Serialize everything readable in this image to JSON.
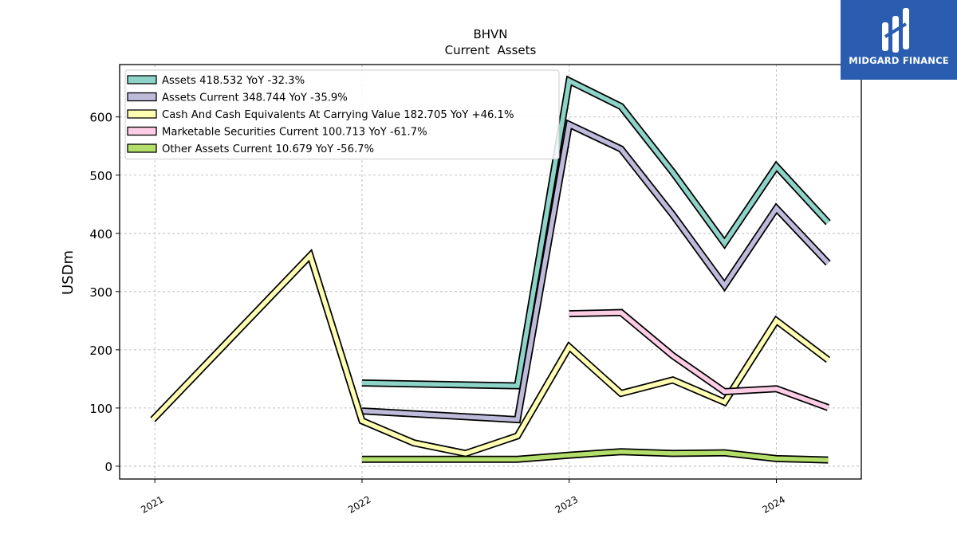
{
  "chart_data": {
    "type": "line",
    "title": "BHVN",
    "subtitle": "Current  Assets",
    "ylabel": "USDm",
    "xlabel": "",
    "ylim": [
      -22,
      690
    ],
    "xlim": [
      2020.83,
      2024.41
    ],
    "grid": true,
    "legend_position": "top-left",
    "yticks": [
      0,
      100,
      200,
      300,
      400,
      500,
      600
    ],
    "xticks": [
      {
        "value": 2021,
        "label": "2021"
      },
      {
        "value": 2022,
        "label": "2022"
      },
      {
        "value": 2023,
        "label": "2023"
      },
      {
        "value": 2024,
        "label": "2024"
      }
    ],
    "series": [
      {
        "name": "Assets  418.532 YoY -32.3%",
        "color": "#8dd3c7",
        "points": [
          [
            2022.0,
            143
          ],
          [
            2022.75,
            138
          ],
          [
            2023.0,
            662
          ],
          [
            2023.25,
            618
          ],
          [
            2023.5,
            505
          ],
          [
            2023.75,
            383
          ],
          [
            2024.0,
            515
          ],
          [
            2024.25,
            418.532
          ]
        ]
      },
      {
        "name": "Assets Current  348.744 YoY -35.9%",
        "color": "#bebada",
        "points": [
          [
            2022.0,
            95
          ],
          [
            2022.75,
            80
          ],
          [
            2023.0,
            587
          ],
          [
            2023.25,
            545
          ],
          [
            2023.5,
            432
          ],
          [
            2023.75,
            310
          ],
          [
            2024.0,
            443
          ],
          [
            2024.25,
            348.744
          ]
        ]
      },
      {
        "name": "Cash And Cash Equivalents At Carrying Value  182.705 YoY +46.1%",
        "color": "#ffffb3",
        "points": [
          [
            2020.99,
            80
          ],
          [
            2021.75,
            362
          ],
          [
            2022.0,
            78
          ],
          [
            2022.25,
            40
          ],
          [
            2022.5,
            22
          ],
          [
            2022.75,
            52
          ],
          [
            2023.0,
            205
          ],
          [
            2023.25,
            125
          ],
          [
            2023.5,
            148
          ],
          [
            2023.75,
            110
          ],
          [
            2024.0,
            250
          ],
          [
            2024.25,
            182.705
          ]
        ]
      },
      {
        "name": "Marketable Securities Current  100.713 YoY -61.7%",
        "color": "#fccde5",
        "points": [
          [
            2023.0,
            262
          ],
          [
            2023.25,
            264
          ],
          [
            2023.5,
            190
          ],
          [
            2023.75,
            128
          ],
          [
            2024.0,
            133
          ],
          [
            2024.25,
            100.713
          ]
        ]
      },
      {
        "name": "Other Assets Current  10.679 YoY -56.7%",
        "color": "#b3de69",
        "points": [
          [
            2022.0,
            12
          ],
          [
            2022.25,
            12
          ],
          [
            2022.5,
            12
          ],
          [
            2022.75,
            12
          ],
          [
            2023.0,
            19
          ],
          [
            2023.25,
            25
          ],
          [
            2023.5,
            22
          ],
          [
            2023.75,
            23
          ],
          [
            2024.0,
            13
          ],
          [
            2024.25,
            10.679
          ]
        ]
      }
    ]
  },
  "logo": {
    "text": "MIDGARD FINANCE",
    "color": "#2a5db0"
  }
}
